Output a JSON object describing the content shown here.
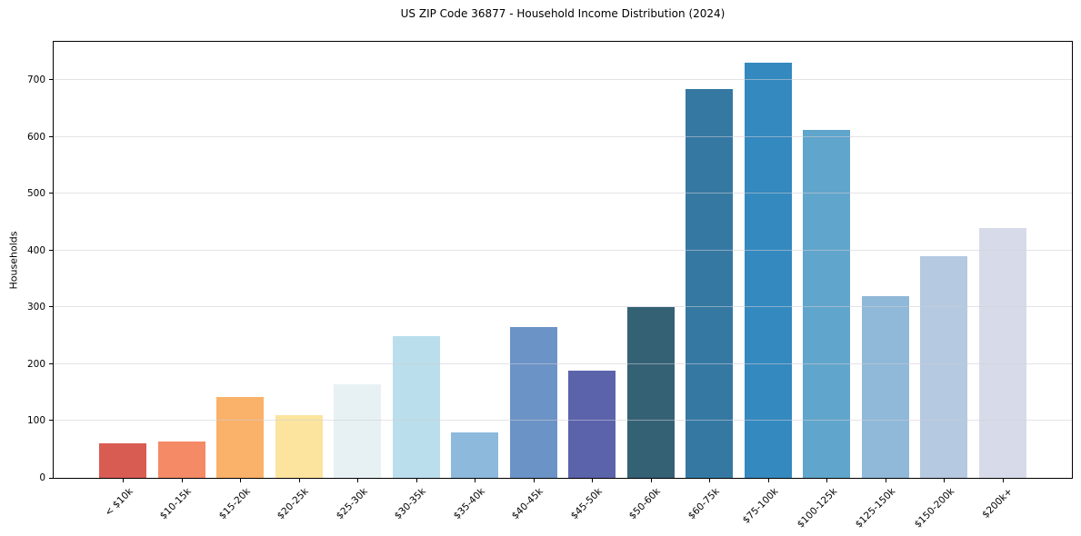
{
  "chart_data": {
    "type": "bar",
    "title": "US ZIP Code 36877 - Household Income Distribution (2024)",
    "xlabel": "",
    "ylabel": "Households",
    "categories": [
      "< $10k",
      "$10-15k",
      "$15-20k",
      "$20-25k",
      "$25-30k",
      "$30-35k",
      "$35-40k",
      "$40-45k",
      "$45-50k",
      "$50-60k",
      "$60-75k",
      "$75-100k",
      "$100-125k",
      "$125-150k",
      "$150-200k",
      "$200k+"
    ],
    "values": [
      60,
      64,
      142,
      110,
      165,
      250,
      80,
      266,
      188,
      300,
      684,
      730,
      612,
      320,
      390,
      440
    ],
    "bar_colors": [
      "#d95c52",
      "#f58a66",
      "#fab169",
      "#fce49e",
      "#e7f1f4",
      "#bbdeec",
      "#8cb9dc",
      "#6b93c6",
      "#5b63ab",
      "#356175",
      "#3579a3",
      "#3489bf",
      "#60a5cb",
      "#90b8d8",
      "#b5c9e1",
      "#d7dbe9"
    ],
    "yticks": [
      0,
      100,
      200,
      300,
      400,
      500,
      600,
      700
    ],
    "ylim": [
      0,
      767
    ],
    "grid": "horizontal-only",
    "legend": "none",
    "axis_color": "#000000",
    "background": "#ffffff"
  }
}
